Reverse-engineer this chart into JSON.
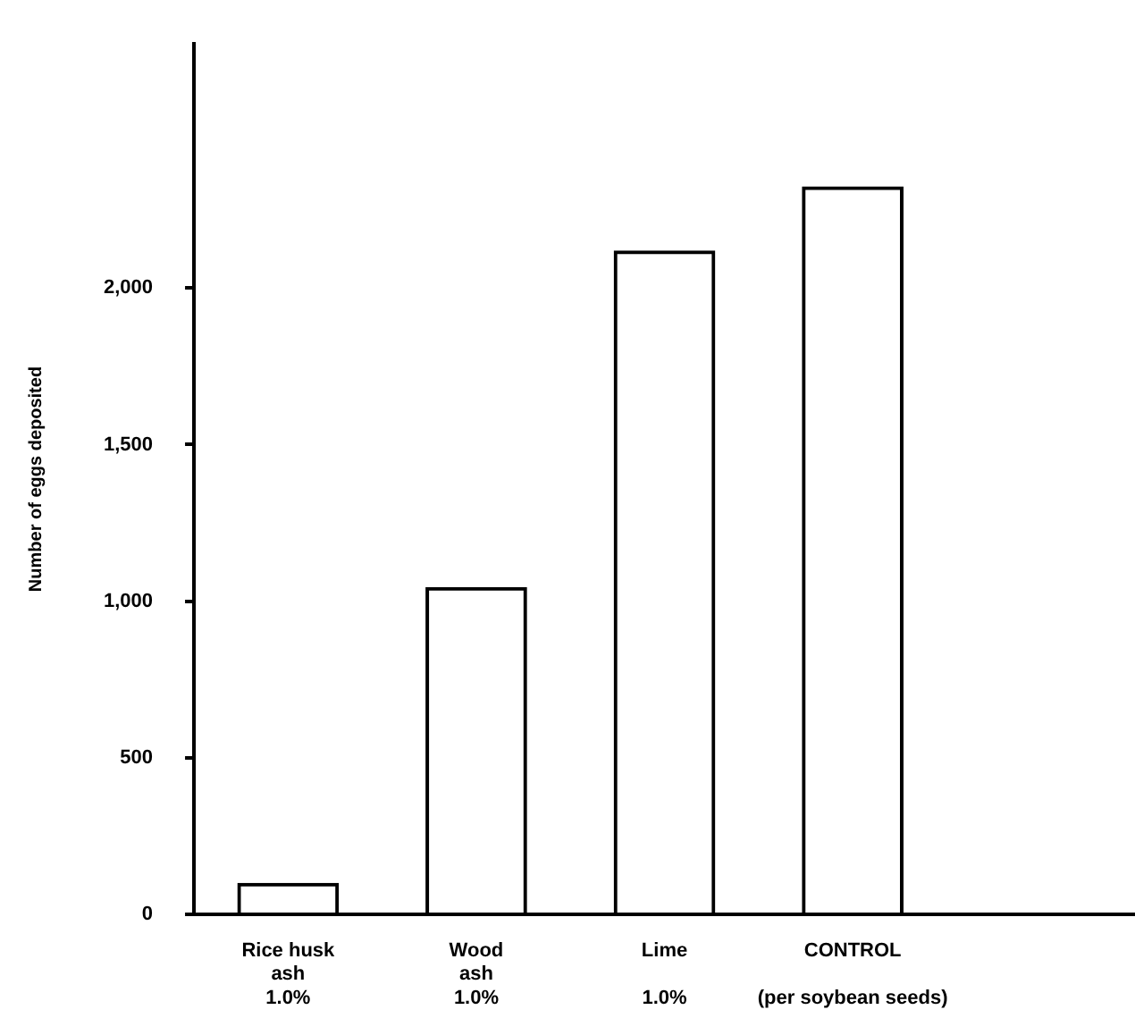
{
  "chart_data": {
    "type": "bar",
    "ylabel": "Number of eggs deposited",
    "categories": [
      "Rice husk\nash\n1.0%",
      "Wood\nash\n1.0%",
      "Lime\n\n1.0%",
      "CONTROL\n\n(per soybean seeds)",
      null
    ],
    "values": [
      100,
      1045,
      2120,
      2325,
      null
    ],
    "color": "#000000",
    "ylim": [
      0,
      2780
    ],
    "yticks": [
      0,
      500,
      {
        "value": 1000,
        "label": "1,000"
      },
      {
        "value": 1500,
        "label": "1,500"
      },
      {
        "value": 2000,
        "label": "2,000"
      }
    ],
    "grid": false,
    "legend": false
  }
}
